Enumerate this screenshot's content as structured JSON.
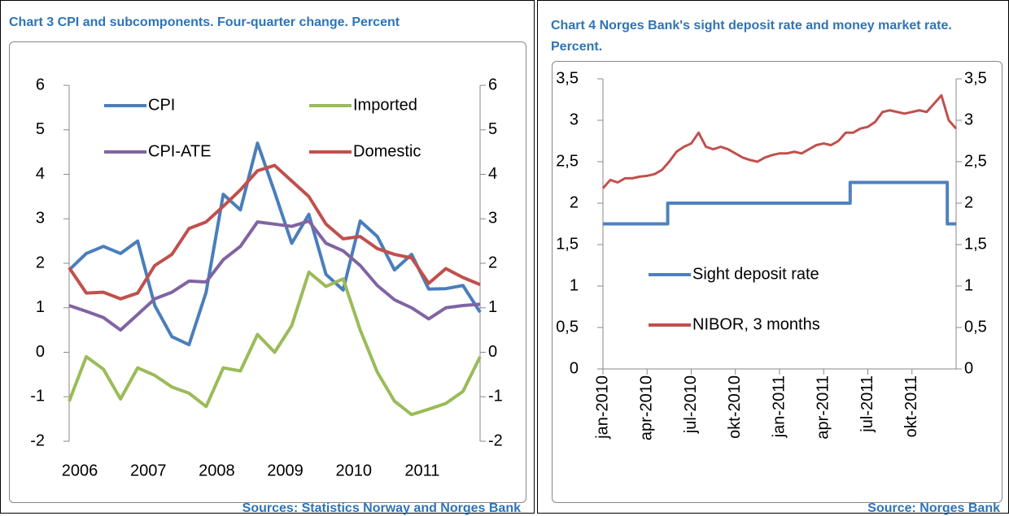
{
  "chart_data": [
    {
      "type": "line",
      "title": "Chart 3 CPI and subcomponents. Four-quarter change. Percent",
      "source": "Sources: Statistics Norway and Norges Bank",
      "categories": [
        null,
        "2006",
        null,
        null,
        null,
        "2007",
        null,
        null,
        null,
        "2008",
        null,
        null,
        null,
        "2009",
        null,
        null,
        null,
        "2010",
        null,
        null,
        null,
        "2011",
        null,
        null,
        null
      ],
      "ylim": [
        -2,
        6
      ],
      "yticks": [
        -2,
        -1,
        0,
        1,
        2,
        3,
        4,
        5,
        6
      ],
      "series": [
        {
          "name": "CPI",
          "color": "#4a7ebb",
          "values": [
            1.85,
            2.22,
            2.38,
            2.22,
            2.5,
            1.05,
            0.35,
            0.17,
            1.35,
            3.55,
            3.2,
            4.7,
            3.6,
            2.45,
            3.1,
            1.75,
            1.4,
            2.95,
            2.6,
            1.85,
            2.2,
            1.42,
            1.43,
            1.5,
            0.9
          ]
        },
        {
          "name": "Imported",
          "color": "#9bbb59",
          "values": [
            -1.1,
            -0.1,
            -0.38,
            -1.05,
            -0.35,
            -0.52,
            -0.78,
            -0.92,
            -1.22,
            -0.35,
            -0.42,
            0.4,
            0.0,
            0.6,
            1.8,
            1.48,
            1.65,
            0.5,
            -0.45,
            -1.1,
            -1.4,
            -1.28,
            -1.15,
            -0.88,
            -0.1
          ]
        },
        {
          "name": "CPI-ATE",
          "color": "#8064a2",
          "values": [
            1.05,
            0.92,
            0.78,
            0.5,
            0.85,
            1.2,
            1.35,
            1.6,
            1.58,
            2.08,
            2.38,
            2.93,
            2.88,
            2.83,
            2.95,
            2.45,
            2.28,
            1.95,
            1.5,
            1.18,
            1.0,
            0.75,
            1.0,
            1.05,
            1.08
          ]
        },
        {
          "name": "Domestic",
          "color": "#c0504d",
          "values": [
            1.9,
            1.33,
            1.35,
            1.2,
            1.33,
            1.95,
            2.2,
            2.78,
            2.93,
            3.28,
            3.65,
            4.08,
            4.2,
            3.85,
            3.5,
            2.88,
            2.55,
            2.6,
            2.33,
            2.2,
            2.12,
            1.55,
            1.88,
            1.68,
            1.52
          ]
        }
      ]
    },
    {
      "type": "line",
      "title": "Chart 4 Norges Bank's sight deposit rate and money market rate. Percent.",
      "source": "Source: Norges Bank",
      "xlim": [
        0,
        24
      ],
      "xticks": [
        {
          "value": 0,
          "label": "jan-2010"
        },
        {
          "value": 3,
          "label": "apr-2010"
        },
        {
          "value": 6,
          "label": "jul-2010"
        },
        {
          "value": 9,
          "label": "okt-2010"
        },
        {
          "value": 12,
          "label": "jan-2011"
        },
        {
          "value": 15,
          "label": "apr-2011"
        },
        {
          "value": 18,
          "label": "jul-2011"
        },
        {
          "value": 21,
          "label": "okt-2011"
        }
      ],
      "ylim": [
        0,
        3.5
      ],
      "yticks": [
        0,
        {
          "value": 0.5,
          "label": "0,5"
        },
        1,
        {
          "value": 1.5,
          "label": "1,5"
        },
        2,
        {
          "value": 2.5,
          "label": "2,5"
        },
        3,
        {
          "value": 3.5,
          "label": "3,5"
        }
      ],
      "series": [
        {
          "name": "Sight deposit rate",
          "color": "#4f81bd",
          "x": [
            0,
            4.4,
            4.4,
            16.8,
            16.8,
            23.4,
            23.4,
            24
          ],
          "values": [
            1.75,
            1.75,
            2.0,
            2.0,
            2.25,
            2.25,
            1.75,
            1.75
          ]
        },
        {
          "name": "NIBOR, 3 months",
          "color": "#c0504d",
          "x": [
            0,
            0.5,
            1,
            1.5,
            2,
            2.5,
            3,
            3.5,
            4,
            4.5,
            5,
            5.5,
            6,
            6.5,
            7,
            7.5,
            8,
            8.5,
            9,
            9.5,
            10,
            10.5,
            11,
            11.5,
            12,
            12.5,
            13,
            13.5,
            14,
            14.5,
            15,
            15.5,
            16,
            16.5,
            17,
            17.5,
            18,
            18.5,
            19,
            19.5,
            20,
            20.5,
            21,
            21.5,
            22,
            22.5,
            23,
            23.5,
            24
          ],
          "values": [
            2.18,
            2.28,
            2.25,
            2.3,
            2.3,
            2.32,
            2.33,
            2.35,
            2.4,
            2.5,
            2.62,
            2.68,
            2.72,
            2.85,
            2.68,
            2.65,
            2.68,
            2.65,
            2.6,
            2.55,
            2.52,
            2.5,
            2.55,
            2.58,
            2.6,
            2.6,
            2.62,
            2.6,
            2.65,
            2.7,
            2.72,
            2.7,
            2.75,
            2.85,
            2.85,
            2.9,
            2.92,
            2.98,
            3.1,
            3.12,
            3.1,
            3.08,
            3.1,
            3.12,
            3.1,
            3.2,
            3.3,
            3.0,
            2.9
          ]
        }
      ]
    }
  ]
}
